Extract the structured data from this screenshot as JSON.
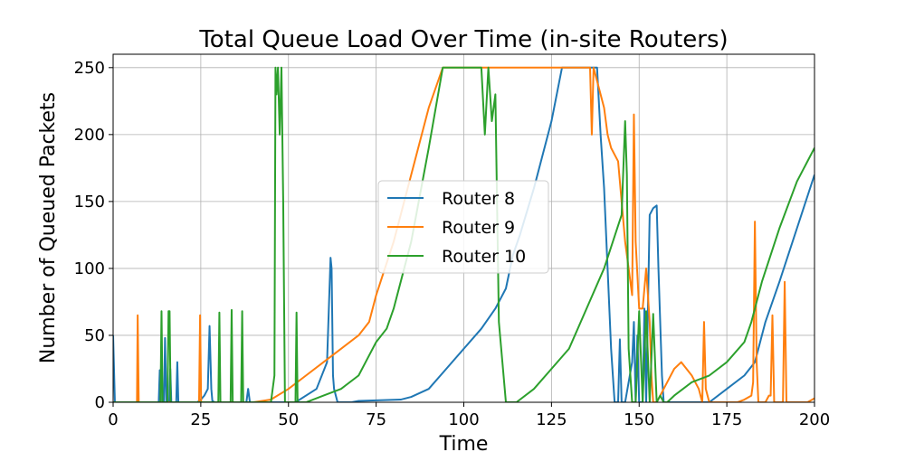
{
  "chart_data": {
    "type": "line",
    "title": "Total Queue Load Over Time (in-site Routers)",
    "xlabel": "Time",
    "ylabel": "Number of Queued Packets",
    "xlim": [
      0,
      200
    ],
    "ylim": [
      0,
      260
    ],
    "xticks": [
      0,
      25,
      50,
      75,
      100,
      125,
      150,
      175,
      200
    ],
    "yticks": [
      0,
      50,
      100,
      150,
      200,
      250
    ],
    "grid": true,
    "legend_position": "center",
    "series": [
      {
        "name": "Router 8",
        "color": "#1f77b4",
        "x": [
          0,
          0.5,
          1,
          13,
          13.3,
          13.6,
          14.5,
          14.8,
          15.2,
          16,
          16.3,
          16.6,
          18,
          18.3,
          18.6,
          24,
          25,
          26,
          27,
          27.5,
          28,
          28.3,
          29,
          38,
          38.5,
          39,
          40,
          52,
          58,
          61,
          62,
          62.3,
          62.7,
          63,
          64,
          68,
          70,
          82,
          85,
          90,
          95,
          100,
          105,
          109,
          110,
          112,
          114,
          116,
          120,
          125,
          128,
          130,
          138,
          139,
          140,
          141,
          142,
          143,
          144,
          144.5,
          145,
          145.5,
          146,
          148,
          148.5,
          149,
          149.5,
          150,
          151,
          151.5,
          152,
          153,
          154,
          155,
          155.5,
          156,
          156.5,
          157,
          158,
          159,
          160,
          162,
          165,
          170,
          175,
          180,
          183,
          186,
          190,
          195,
          200
        ],
        "y": [
          50,
          0,
          0,
          0,
          24,
          0,
          0,
          48,
          0,
          0,
          25,
          0,
          0,
          30,
          0,
          0,
          2,
          5,
          10,
          57,
          10,
          1,
          0,
          0,
          10,
          0,
          0,
          0,
          10,
          30,
          108,
          100,
          20,
          10,
          0,
          0,
          1,
          2,
          4,
          10,
          25,
          40,
          55,
          70,
          75,
          85,
          110,
          125,
          160,
          210,
          250,
          250,
          250,
          200,
          160,
          100,
          40,
          0,
          0,
          47,
          0,
          0,
          0,
          30,
          60,
          0,
          50,
          0,
          0,
          70,
          0,
          140,
          145,
          147,
          100,
          60,
          20,
          0,
          0,
          0,
          0,
          0,
          0,
          0,
          10,
          20,
          30,
          60,
          90,
          130,
          170
        ]
      },
      {
        "name": "Router 9",
        "color": "#ff7f0e",
        "x": [
          0,
          6.8,
          7,
          7.3,
          7.6,
          24.5,
          24.8,
          25.1,
          25.4,
          40,
          45,
          50,
          55,
          60,
          65,
          70,
          73,
          75,
          80,
          85,
          90,
          94,
          100,
          110,
          120,
          130,
          135,
          136,
          136.5,
          137,
          138,
          139,
          140,
          141,
          142,
          143,
          144,
          145,
          146,
          147,
          148,
          148.5,
          149,
          150,
          151,
          152,
          153,
          153.5,
          154,
          155,
          156,
          157,
          158,
          159,
          160,
          162,
          165,
          166,
          167,
          168,
          168.5,
          169,
          170,
          172,
          175,
          178,
          180,
          182,
          182.5,
          183,
          183.5,
          184,
          185,
          186,
          187,
          187.5,
          188,
          188.5,
          189,
          190,
          191,
          191.5,
          192,
          192.5,
          193,
          195,
          198,
          200
        ],
        "y": [
          0,
          0,
          65,
          0,
          0,
          0,
          65,
          0,
          0,
          0,
          2,
          10,
          20,
          30,
          40,
          50,
          60,
          80,
          120,
          170,
          220,
          250,
          250,
          250,
          250,
          250,
          250,
          250,
          200,
          250,
          240,
          230,
          220,
          200,
          190,
          185,
          180,
          150,
          120,
          100,
          80,
          215,
          120,
          70,
          70,
          100,
          60,
          20,
          0,
          0,
          5,
          10,
          15,
          20,
          25,
          30,
          20,
          15,
          10,
          0,
          60,
          10,
          0,
          0,
          0,
          0,
          2,
          5,
          15,
          135,
          30,
          0,
          0,
          0,
          5,
          5,
          65,
          0,
          0,
          0,
          0,
          90,
          0,
          0,
          0,
          0,
          0,
          3
        ]
      },
      {
        "name": "Router 10",
        "color": "#2ca02c",
        "x": [
          0,
          13.5,
          13.8,
          14.1,
          15.5,
          15.8,
          16.1,
          16.4,
          30,
          30.3,
          30.6,
          33.5,
          33.8,
          34.1,
          36.5,
          36.8,
          37.1,
          40,
          45,
          46,
          46.3,
          46.6,
          47,
          47.5,
          48,
          48.5,
          49,
          49.5,
          52,
          52.3,
          52.6,
          55,
          60,
          65,
          70,
          72,
          75,
          78,
          80,
          85,
          90,
          94,
          100,
          105,
          106,
          107,
          108,
          109,
          110,
          111,
          112,
          115,
          120,
          125,
          130,
          135,
          140,
          145,
          146,
          146.5,
          147,
          148,
          149,
          150,
          151,
          152,
          153,
          154,
          155,
          156,
          157,
          158,
          160,
          165,
          170,
          175,
          180,
          182,
          185,
          190,
          195,
          200
        ],
        "y": [
          0,
          0,
          68,
          0,
          0,
          68,
          68,
          0,
          0,
          67,
          0,
          0,
          69,
          0,
          0,
          68,
          0,
          0,
          0,
          20,
          250,
          230,
          250,
          200,
          250,
          150,
          0,
          0,
          0,
          67,
          0,
          0,
          5,
          10,
          20,
          30,
          45,
          55,
          70,
          120,
          190,
          250,
          250,
          250,
          200,
          250,
          210,
          230,
          60,
          30,
          0,
          0,
          10,
          25,
          40,
          70,
          100,
          140,
          210,
          170,
          40,
          0,
          0,
          68,
          0,
          68,
          0,
          66,
          0,
          5,
          0,
          0,
          5,
          15,
          20,
          30,
          45,
          60,
          90,
          130,
          165,
          190
        ]
      }
    ]
  }
}
